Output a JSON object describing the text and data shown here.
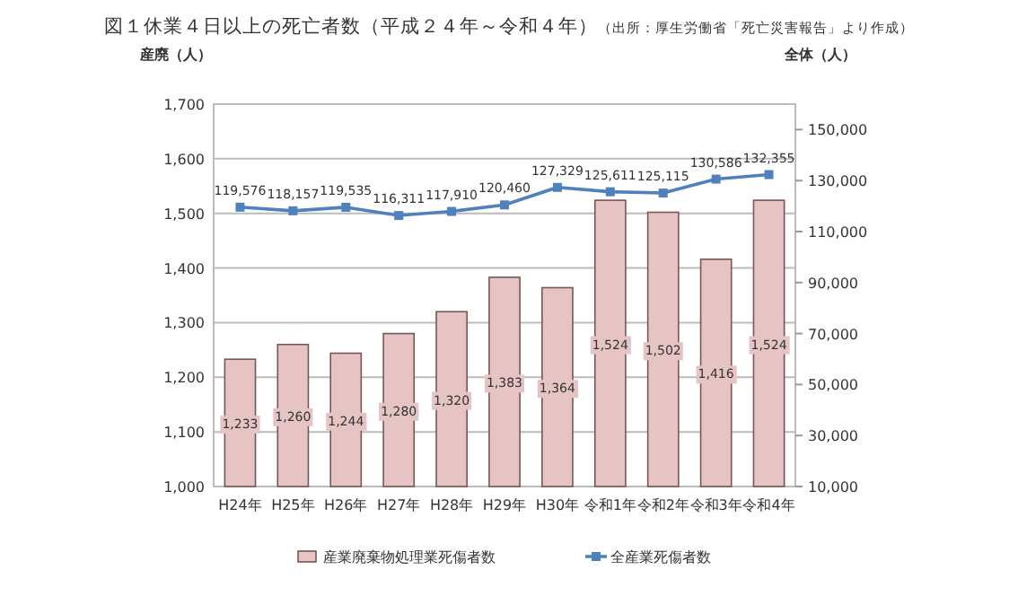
{
  "chart_data": {
    "type": "bar",
    "title": "図１休業４日以上の死亡者数（平成２４年～令和４年）",
    "annotations": [
      "（出所：厚生労働省「死亡災害報告」より作成）"
    ],
    "ylabel": "産廃（人）",
    "y2label": "全体（人）",
    "categories": [
      "H24年",
      "H25年",
      "H26年",
      "H27年",
      "H28年",
      "H29年",
      "H30年",
      "令和1年",
      "令和2年",
      "令和3年",
      "令和4年"
    ],
    "series": [
      {
        "name": "産業廃棄物処理業死傷者数",
        "color": "#e6c4c4",
        "values": [
          1233,
          1260,
          1244,
          1280,
          1320,
          1383,
          1364,
          1524,
          1502,
          1416,
          1524
        ],
        "value_labels": [
          "1,233",
          "1,260",
          "1,244",
          "1,280",
          "1,320",
          "1,383",
          "1,364",
          "1,524",
          "1,502",
          "1,416",
          "1,524"
        ]
      },
      {
        "name": "全産業死傷者数",
        "type": "line",
        "axis": "y2",
        "color": "#4f81bd",
        "marker": "square",
        "values": [
          119576,
          118157,
          119535,
          116311,
          117910,
          120460,
          127329,
          125611,
          125115,
          130586,
          132355
        ],
        "value_labels": [
          "119,576",
          "118,157",
          "119,535",
          "116,311",
          "117,910",
          "120,460",
          "127,329",
          "125,611",
          "125,115",
          "130,586",
          "132,355"
        ]
      }
    ],
    "ylim": [
      1000,
      1700
    ],
    "yticks": [
      {
        "value": 1000,
        "label": "1,000"
      },
      {
        "value": 1100,
        "label": "1,100"
      },
      {
        "value": 1200,
        "label": "1,200"
      },
      {
        "value": 1300,
        "label": "1,300"
      },
      {
        "value": 1400,
        "label": "1,400"
      },
      {
        "value": 1500,
        "label": "1,500"
      },
      {
        "value": 1600,
        "label": "1,600"
      },
      {
        "value": 1700,
        "label": "1,700"
      }
    ],
    "y2lim": [
      10000,
      160000
    ],
    "y2ticks": [
      {
        "value": 10000,
        "label": "10,000"
      },
      {
        "value": 30000,
        "label": "30,000"
      },
      {
        "value": 50000,
        "label": "50,000"
      },
      {
        "value": 70000,
        "label": "70,000"
      },
      {
        "value": 90000,
        "label": "90,000"
      },
      {
        "value": 110000,
        "label": "110,000"
      },
      {
        "value": 130000,
        "label": "130,000"
      },
      {
        "value": 150000,
        "label": "150,000"
      }
    ],
    "grid": "y",
    "legend": "bottom"
  }
}
